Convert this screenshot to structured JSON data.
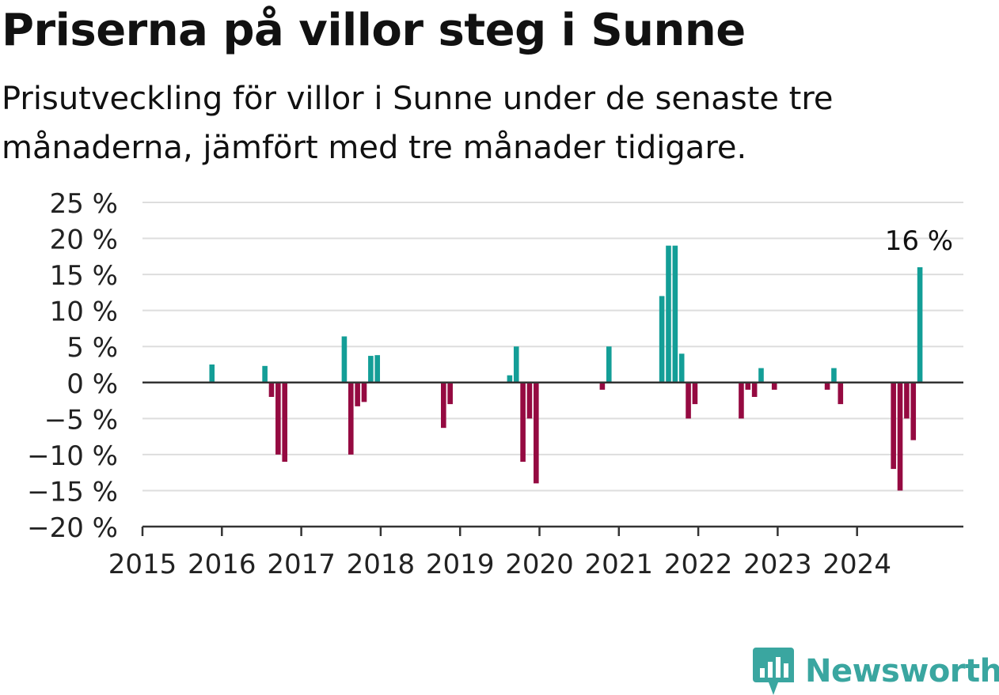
{
  "title": "Priserna på villor steg i Sunne",
  "subtitle": "Prisutveckling för villor i Sunne under de senaste tre månaderna, jämfört med tre månader tidigare.",
  "brand": {
    "name": "Newsworthy"
  },
  "colors": {
    "positive": "#139e97",
    "negative": "#950a41",
    "grid": "#dddddd",
    "axis": "#333333",
    "brand": "#3aa6a0"
  },
  "chart_data": {
    "type": "bar",
    "title": "",
    "xlabel": "",
    "ylabel": "",
    "ylim": [
      -20,
      25
    ],
    "y_ticks": [
      25,
      20,
      15,
      10,
      5,
      0,
      -5,
      -10,
      -15,
      -20
    ],
    "y_tick_labels": [
      "25 %",
      "20 %",
      "15 %",
      "10 %",
      "5 %",
      "0 %",
      "−5 %",
      "−10 %",
      "−15 %",
      "−20 %"
    ],
    "x_ticks": [
      "2015",
      "2016",
      "2017",
      "2018",
      "2019",
      "2020",
      "2021",
      "2022",
      "2023",
      "2024"
    ],
    "grid": true,
    "legend": "none",
    "annotation": {
      "text": "16 %",
      "x": "2024-10",
      "value": 16
    },
    "x": [
      "2015-11",
      "2016-07",
      "2016-08",
      "2016-09",
      "2016-10",
      "2017-07",
      "2017-08",
      "2017-09",
      "2017-10",
      "2017-11",
      "2017-12",
      "2018-10",
      "2018-11",
      "2019-08",
      "2019-09",
      "2019-10",
      "2019-11",
      "2019-12",
      "2020-10",
      "2020-11",
      "2021-07",
      "2021-08",
      "2021-09",
      "2021-10",
      "2021-11",
      "2021-12",
      "2022-07",
      "2022-08",
      "2022-09",
      "2022-10",
      "2022-12",
      "2023-08",
      "2023-09",
      "2023-10",
      "2024-06",
      "2024-07",
      "2024-08",
      "2024-09",
      "2024-10"
    ],
    "values": [
      2.5,
      2.3,
      -2,
      -10,
      -11,
      6.4,
      -10,
      -3.3,
      -2.7,
      3.7,
      3.8,
      -6.3,
      -3,
      1,
      5,
      -11,
      -5,
      -14,
      -1,
      5,
      12,
      19,
      19,
      4,
      -5,
      -3,
      -5,
      -1,
      -2,
      2,
      -1,
      -1,
      2,
      -3,
      -12,
      -15,
      -5,
      -8,
      16
    ]
  }
}
